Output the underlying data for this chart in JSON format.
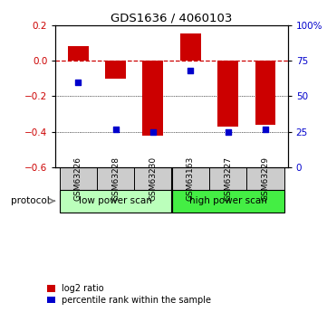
{
  "title": "GDS1636 / 4060103",
  "samples": [
    "GSM63226",
    "GSM63228",
    "GSM63230",
    "GSM63163",
    "GSM63227",
    "GSM63229"
  ],
  "log2_ratio": [
    0.08,
    -0.1,
    -0.42,
    0.15,
    -0.37,
    -0.36
  ],
  "percentile_rank": [
    60,
    27,
    25,
    68,
    25,
    27
  ],
  "ylim_left": [
    -0.6,
    0.2
  ],
  "ylim_right": [
    0,
    100
  ],
  "yticks_left": [
    -0.6,
    -0.4,
    -0.2,
    0.0,
    0.2
  ],
  "yticks_right": [
    0,
    25,
    50,
    75,
    100
  ],
  "ytick_labels_right": [
    "0",
    "25",
    "50",
    "75",
    "100%"
  ],
  "bar_color": "#cc0000",
  "dot_color": "#0000cc",
  "zero_line_color": "#cc0000",
  "protocol_groups": [
    {
      "label": "low power scan",
      "indices": [
        0,
        1,
        2
      ],
      "color": "#bbffbb"
    },
    {
      "label": "high power scan",
      "indices": [
        3,
        4,
        5
      ],
      "color": "#44ee44"
    }
  ],
  "legend_bar_label": "log2 ratio",
  "legend_dot_label": "percentile rank within the sample",
  "bar_width": 0.55,
  "sample_box_color": "#cccccc"
}
